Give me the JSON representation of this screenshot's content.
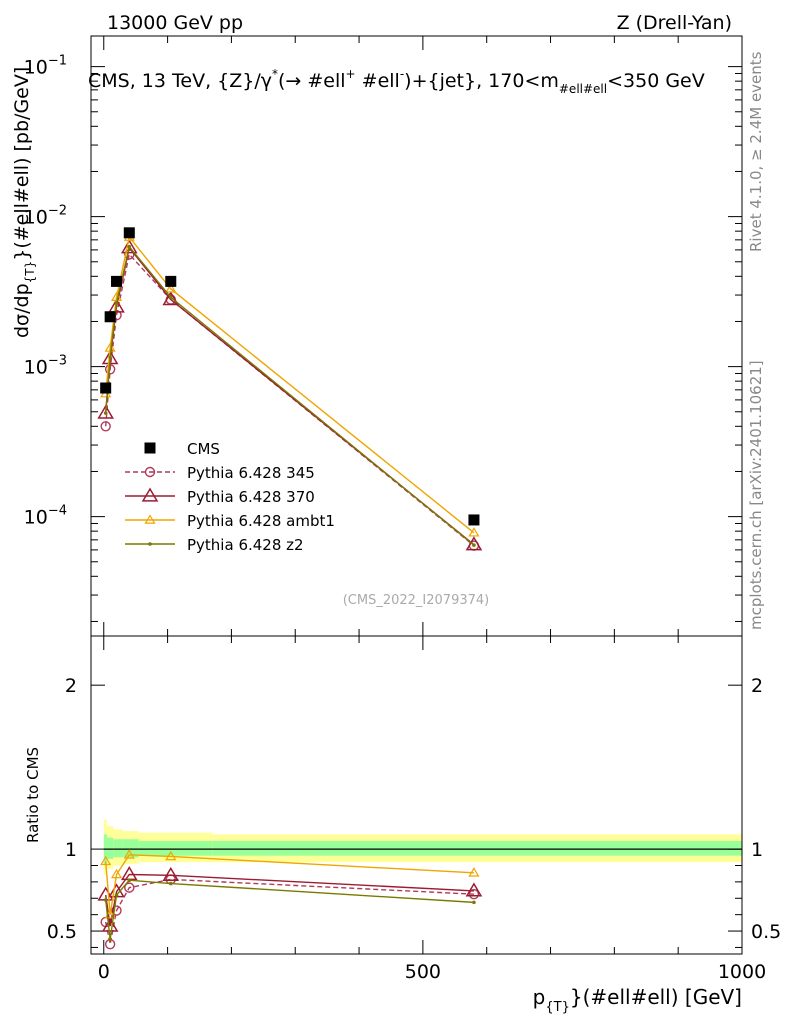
{
  "header": {
    "left": "13000 GeV pp",
    "right": "Z (Drell-Yan)"
  },
  "side_labels": {
    "rivet": "Rivet 4.1.0, ≥ 2.4M events",
    "mcplots": "mcplots.cern.ch [arXiv:2401.10621]"
  },
  "chart_data": [
    {
      "type": "line",
      "panel": "main",
      "title": "CMS, 13 TeV, {Z}/γ*(→ #ell⁺ #ell⁻)+{jet}, 170<m_#ell#ell<350 GeV",
      "title_text": "CMS, 13 TeV, {Z}/γ",
      "title_sup": "*",
      "title_mid": "(→  #ell",
      "title_sup2": "+",
      "title_mid2": " #ell",
      "title_sup3": "-",
      "title_mid3": ")+{jet}, 170<m",
      "title_sub": "#ell#ell",
      "title_end": "<350 GeV",
      "ylabel_main": "dσ/dp",
      "ylabel_sub": "{T}",
      "ylabel_end": "}(#ell#ell) [pb/GeV]",
      "yscale": "log",
      "ylim": [
        1.6e-05,
        0.16
      ],
      "xlim": [
        -20,
        1000
      ],
      "y_ticks": [
        {
          "value": 0.0001,
          "base": "10",
          "exp": "−4"
        },
        {
          "value": 0.001,
          "base": "10",
          "exp": "−3"
        },
        {
          "value": 0.01,
          "base": "10",
          "exp": "−2"
        },
        {
          "value": 0.1,
          "base": "10",
          "exp": "−1"
        }
      ],
      "watermark": "(CMS_2022_I2079374)",
      "x": [
        3,
        10,
        20,
        40,
        105,
        580
      ],
      "series": [
        {
          "name": "CMS",
          "color": "#000000",
          "marker": "square",
          "line": "none",
          "values": [
            0.00072,
            0.00215,
            0.0037,
            0.0078,
            0.0037,
            9.5e-05
          ]
        },
        {
          "name": "Pythia 6.428 345",
          "color": "#b03a5b",
          "marker": "circle-open",
          "line": "dashed",
          "values": [
            0.0004,
            0.00096,
            0.0022,
            0.0056,
            0.0028,
            6.4e-05
          ]
        },
        {
          "name": "Pythia 6.428 370",
          "color": "#9b1b30",
          "marker": "triangle-open",
          "line": "solid",
          "values": [
            0.00049,
            0.00113,
            0.0025,
            0.0062,
            0.0028,
            6.5e-05
          ]
        },
        {
          "name": "Pythia 6.428 ambt1",
          "color": "#f0a500",
          "marker": "triangle-open-small",
          "line": "solid",
          "values": [
            0.00066,
            0.00133,
            0.0029,
            0.0073,
            0.0033,
            7.8e-05
          ]
        },
        {
          "name": "Pythia 6.428 z2",
          "color": "#7a7a00",
          "marker": "dot",
          "line": "solid",
          "values": [
            0.00049,
            0.00115,
            0.00265,
            0.0063,
            0.0029,
            6.45e-05
          ]
        }
      ]
    },
    {
      "type": "line",
      "panel": "ratio",
      "ylabel": "Ratio to CMS",
      "xlabel_main": "p",
      "xlabel_sub": "{T}",
      "xlabel_end": "}(#ell#ell) [GeV]",
      "ylim": [
        0.36,
        2.3
      ],
      "xlim": [
        -20,
        1000
      ],
      "y_ticks": [
        {
          "value": 0.5,
          "label": "0.5"
        },
        {
          "value": 1,
          "label": "1"
        },
        {
          "value": 2,
          "label": "2"
        }
      ],
      "x_ticks": [
        {
          "value": 0,
          "label": "0"
        },
        {
          "value": 500,
          "label": "500"
        },
        {
          "value": 1000,
          "label": "1000"
        }
      ],
      "band_edges": [
        0,
        5,
        15,
        30,
        55,
        170,
        1000
      ],
      "band_yellow": [
        [
          0.84,
          1.18
        ],
        [
          0.88,
          1.14
        ],
        [
          0.9,
          1.12
        ],
        [
          0.91,
          1.11
        ],
        [
          0.92,
          1.1
        ],
        [
          0.92,
          1.09
        ]
      ],
      "band_green": [
        [
          0.91,
          1.09
        ],
        [
          0.94,
          1.07
        ],
        [
          0.95,
          1.06
        ],
        [
          0.95,
          1.06
        ],
        [
          0.96,
          1.05
        ],
        [
          0.96,
          1.05
        ]
      ],
      "x": [
        3,
        10,
        20,
        40,
        105,
        580
      ],
      "series": [
        {
          "name": "Pythia 6.428 345",
          "values": [
            0.555,
            0.42,
            0.625,
            0.765,
            0.815,
            0.725
          ]
        },
        {
          "name": "Pythia 6.428 370",
          "values": [
            0.72,
            0.53,
            0.74,
            0.845,
            0.84,
            0.745
          ]
        },
        {
          "name": "Pythia 6.428 ambt1",
          "values": [
            0.925,
            0.6,
            0.845,
            0.965,
            0.955,
            0.855
          ]
        },
        {
          "name": "Pythia 6.428 z2",
          "values": [
            0.69,
            0.45,
            0.72,
            0.81,
            0.79,
            0.675
          ]
        }
      ]
    }
  ]
}
